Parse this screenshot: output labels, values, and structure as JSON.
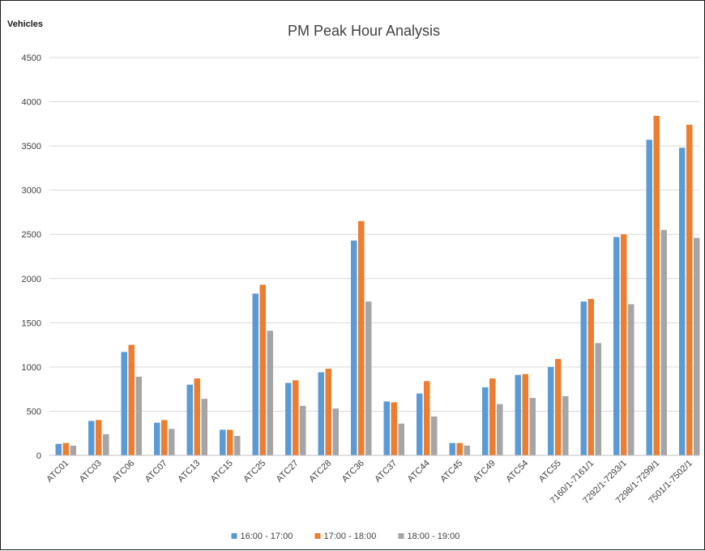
{
  "chart_data": {
    "type": "bar",
    "title": "PM Peak Hour Analysis",
    "ylabel": "Vehicles",
    "xlabel": "",
    "ylim": [
      0,
      4500
    ],
    "yticks": [
      0,
      500,
      1000,
      1500,
      2000,
      2500,
      3000,
      3500,
      4000,
      4500
    ],
    "grid": true,
    "legend_position": "bottom",
    "categories": [
      "ATC01",
      "ATC03",
      "ATC06",
      "ATC07",
      "ATC13",
      "ATC15",
      "ATC25",
      "ATC27",
      "ATC28",
      "ATC36",
      "ATC37",
      "ATC44",
      "ATC45",
      "ATC49",
      "ATC54",
      "ATC55",
      "7160/1-7161/1",
      "7292/1-7293/1",
      "7298/1-7299/1",
      "7501/1-7502/1"
    ],
    "series": [
      {
        "name": "16:00 - 17:00",
        "color": "#5b9bd5",
        "values": [
          130,
          390,
          1170,
          370,
          800,
          290,
          1830,
          820,
          940,
          2430,
          610,
          700,
          140,
          770,
          910,
          1000,
          1740,
          2470,
          3570,
          3480
        ]
      },
      {
        "name": "17:00 - 18:00",
        "color": "#ed7d31",
        "values": [
          140,
          400,
          1250,
          400,
          870,
          290,
          1930,
          850,
          980,
          2650,
          600,
          840,
          140,
          870,
          920,
          1090,
          1770,
          2500,
          3840,
          3740
        ]
      },
      {
        "name": "18:00 - 19:00",
        "color": "#a5a5a5",
        "values": [
          110,
          240,
          890,
          300,
          640,
          220,
          1410,
          560,
          530,
          1740,
          360,
          440,
          110,
          580,
          650,
          670,
          1270,
          1710,
          2550,
          2460
        ]
      }
    ]
  }
}
